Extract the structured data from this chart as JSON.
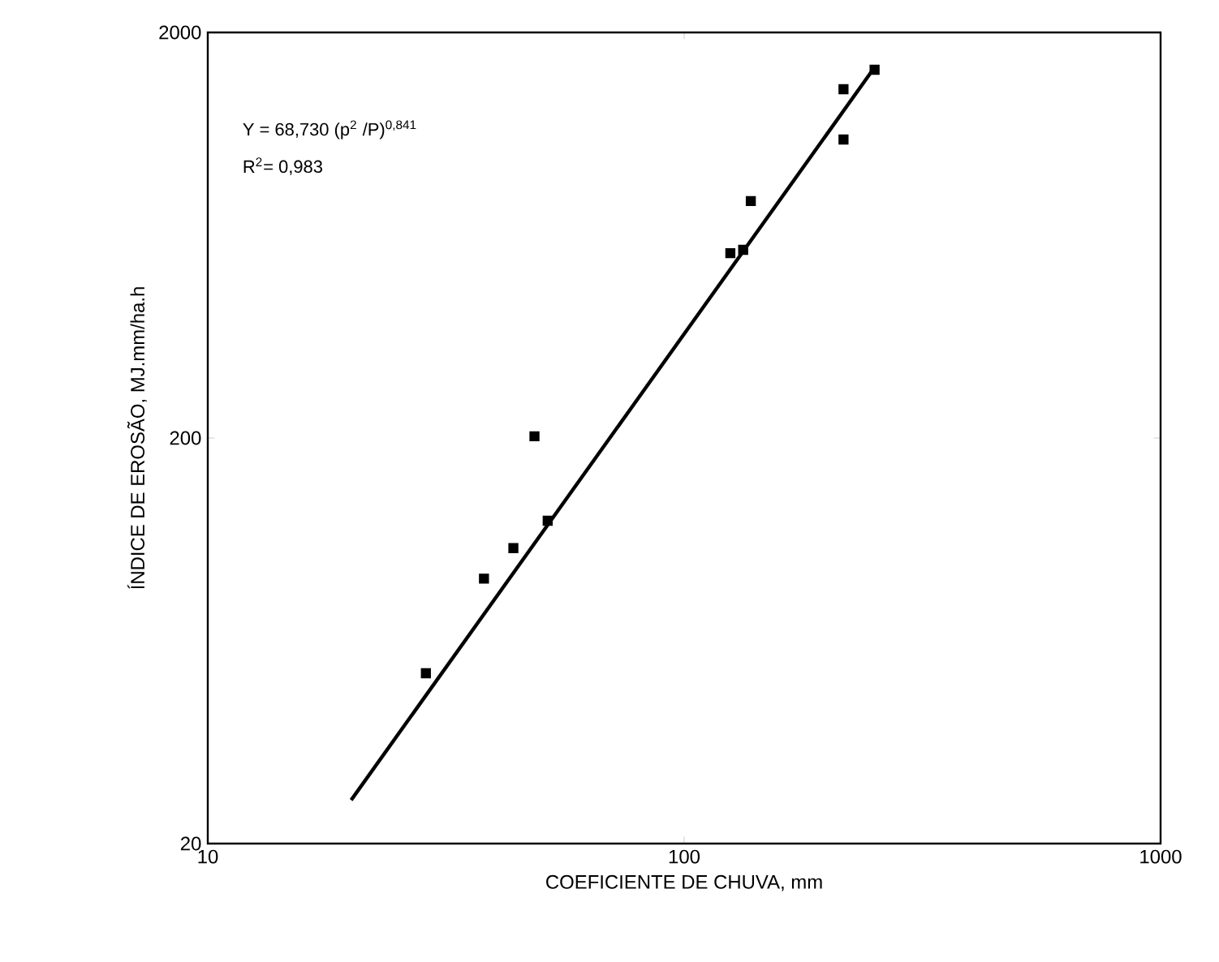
{
  "chart_data": {
    "type": "scatter",
    "xlabel": "COEFICIENTE DE CHUVA, mm",
    "ylabel": "ÍNDICE DE EROSÃO, MJ.mm/ha.h",
    "annotations": [
      "Y = 68,730 (p$^{2}$ /P)$^{0,841}$",
      "R$^{2}$= 0,983"
    ],
    "log": "xy",
    "xlim": [
      10,
      1000
    ],
    "ylim": [
      20,
      2000
    ],
    "xticks": [
      10,
      100,
      1000
    ],
    "yticks": [
      20,
      200,
      2000
    ],
    "marker": "square",
    "grid": false,
    "series": [
      {
        "color": "#000000",
        "x": [
          28.7,
          38.0,
          43.8,
          48.5,
          51.7,
          125,
          133,
          138,
          216,
          216,
          251
        ],
        "values": [
          52.6,
          90,
          107,
          202,
          125,
          571,
          582,
          768,
          1089,
          1449,
          1618
        ]
      },
      {
        "type": "line",
        "marker": "none",
        "color": "#000000",
        "x": [
          20,
          251
        ],
        "values": [
          25.6,
          1640
        ]
      }
    ]
  }
}
